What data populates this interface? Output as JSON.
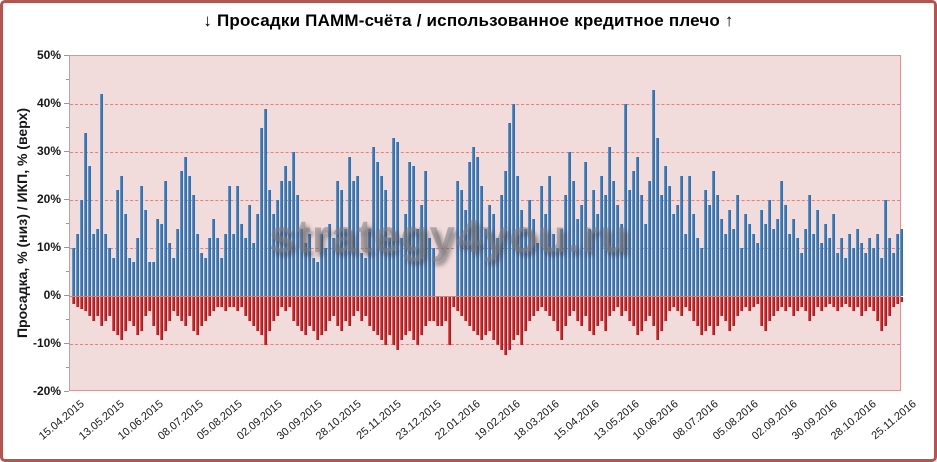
{
  "chart_data": {
    "type": "bar",
    "title": "↓ Просадки ПАММ-счёта / использованное кредитное плечо ↑",
    "ylabel": "Просадка, % (низ) / ИКП, % (верх)",
    "xlabel": "",
    "watermark": "strategy4you.ru",
    "ylim": [
      -20,
      50
    ],
    "grid": "dashed horizontal every 10%",
    "legend_position": "none",
    "colors": {
      "positive_bar": "#4a74a8",
      "negative_bar": "#c0262a",
      "plot_background": "#f2dcdb",
      "gridline": "#cf8a88",
      "frame_border": "#b25550",
      "text": "#17161a"
    },
    "y_ticks": [
      "50%",
      "40%",
      "30%",
      "20%",
      "10%",
      "0%",
      "-10%",
      "-20%"
    ],
    "y_tick_values": [
      50,
      40,
      30,
      20,
      10,
      0,
      -10,
      -20
    ],
    "x_tick_labels": [
      "15.04.2015",
      "13.05.2015",
      "10.06.2015",
      "08.07.2015",
      "05.08.2015",
      "02.09.2015",
      "30.09.2015",
      "28.10.2015",
      "25.11.2015",
      "23.12.2015",
      "22.01.2016",
      "19.02.2016",
      "18.03.2016",
      "15.04.2016",
      "13.05.2016",
      "10.06.2016",
      "08.07.2016",
      "05.08.2016",
      "02.09.2016",
      "30.09.2016",
      "28.10.2016",
      "25.11.2016"
    ],
    "series": [
      {
        "name": "ИКП, % (верх)",
        "color": "#4a74a8",
        "values": [
          10,
          13,
          20,
          34,
          27,
          13,
          14,
          42,
          13,
          10,
          8,
          22,
          25,
          17,
          8,
          7,
          12,
          23,
          18,
          7,
          7,
          16,
          15,
          24,
          11,
          8,
          14,
          26,
          29,
          25,
          21,
          13,
          9,
          8,
          12,
          16,
          12,
          8,
          13,
          23,
          13,
          23,
          15,
          12,
          19,
          11,
          17,
          35,
          39,
          22,
          17,
          20,
          24,
          27,
          24,
          30,
          21,
          14,
          11,
          13,
          8,
          7,
          13,
          10,
          15,
          12,
          24,
          22,
          14,
          29,
          24,
          25,
          9,
          8,
          14,
          31,
          28,
          25,
          22,
          12,
          33,
          32,
          12,
          17,
          28,
          27,
          14,
          19,
          26,
          12,
          10,
          0,
          0,
          0,
          0,
          0,
          24,
          22,
          18,
          28,
          31,
          29,
          23,
          14,
          19,
          17,
          12,
          21,
          26,
          36,
          40,
          25,
          18,
          14,
          20,
          16,
          11,
          23,
          17,
          25,
          13,
          10,
          14,
          21,
          30,
          24,
          16,
          19,
          28,
          14,
          22,
          17,
          25,
          21,
          31,
          24,
          19,
          15,
          40,
          22,
          26,
          29,
          21,
          15,
          24,
          43,
          33,
          21,
          27,
          23,
          17,
          19,
          25,
          13,
          25,
          17,
          12,
          10,
          22,
          19,
          26,
          21,
          16,
          13,
          18,
          14,
          21,
          10,
          17,
          15,
          13,
          11,
          18,
          15,
          20,
          14,
          16,
          24,
          19,
          13,
          16,
          12,
          9,
          14,
          21,
          13,
          18,
          11,
          15,
          12,
          17,
          9,
          12,
          8,
          13,
          10,
          14,
          11,
          9,
          12,
          10,
          13,
          8,
          20,
          12,
          9,
          13,
          14
        ]
      },
      {
        "name": "Просадка, % (низ)",
        "color": "#c0262a",
        "values": [
          -1.5,
          -2,
          -2.5,
          -3,
          -4,
          -5,
          -4,
          -6,
          -5,
          -4,
          -7,
          -8,
          -9,
          -7,
          -5,
          -6,
          -8,
          -7,
          -4,
          -3,
          -6,
          -8,
          -9,
          -7,
          -5,
          -3,
          -4,
          -5,
          -6,
          -4,
          -7,
          -8,
          -6,
          -5,
          -4,
          -3,
          -2,
          -2,
          -3,
          -2,
          -2,
          -3,
          -2,
          -4,
          -5,
          -6,
          -7,
          -8,
          -10,
          -7,
          -5,
          -4,
          -2,
          -3,
          -2,
          -5,
          -6,
          -7,
          -8,
          -6,
          -7,
          -9,
          -8,
          -7,
          -5,
          -4,
          -6,
          -7,
          -5,
          -6,
          -4,
          -3,
          -5,
          -4,
          -6,
          -7,
          -8,
          -9,
          -10,
          -8,
          -10,
          -11,
          -9,
          -8,
          -7,
          -9,
          -10,
          -8,
          -6,
          -5,
          -5,
          -6,
          -6,
          -5,
          -10,
          -2,
          -3,
          -4,
          -5,
          -6,
          -7,
          -8,
          -9,
          -8,
          -7,
          -9,
          -10,
          -11,
          -12,
          -11,
          -9,
          -8,
          -10,
          -7,
          -5,
          -4,
          -3,
          -2,
          -3,
          -4,
          -5,
          -7,
          -9,
          -6,
          -4,
          -3,
          -5,
          -6,
          -4,
          -7,
          -8,
          -6,
          -5,
          -7,
          -4,
          -3,
          -2,
          -4,
          -3,
          -5,
          -6,
          -8,
          -7,
          -5,
          -4,
          -6,
          -9,
          -7,
          -5,
          -3,
          -2,
          -3,
          -4,
          -2,
          -3,
          -5,
          -6,
          -8,
          -7,
          -6,
          -8,
          -6,
          -4,
          -5,
          -7,
          -6,
          -4,
          -3,
          -2,
          -3,
          -2,
          -1.5,
          -6,
          -7,
          -5,
          -4,
          -3,
          -2,
          -3,
          -2,
          -4,
          -3,
          -2,
          -3,
          -5,
          -4,
          -2,
          -3,
          -2,
          -1.5,
          -2,
          -3,
          -2,
          -1.5,
          -2,
          -3,
          -2,
          -4,
          -3,
          -2,
          -3,
          -5,
          -7,
          -6,
          -4,
          -2,
          -1.5,
          -1
        ]
      }
    ]
  }
}
